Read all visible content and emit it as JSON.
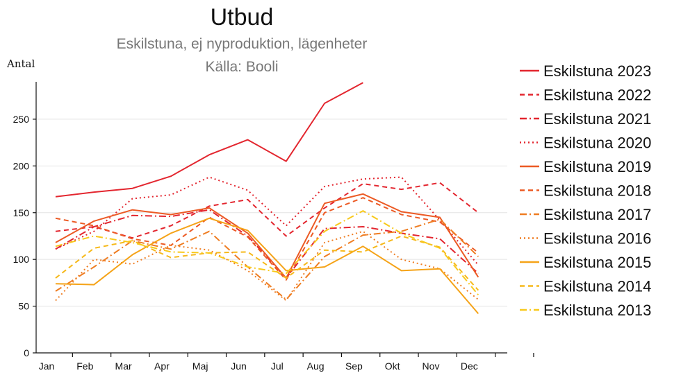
{
  "chart_data": {
    "type": "line",
    "title": "Utbud",
    "subtitle": "Eskilstuna, ej nyproduktion, lägenheter",
    "source": "Källa: Booli",
    "ylabel": "Antal",
    "xlabel": "",
    "ylim": [
      0,
      290
    ],
    "yticks": [
      0,
      50,
      100,
      150,
      200,
      250
    ],
    "categories": [
      "Jan",
      "Feb",
      "Mar",
      "Apr",
      "Maj",
      "Jun",
      "Jul",
      "Aug",
      "Sep",
      "Okt",
      "Nov",
      "Dec"
    ],
    "grid": true,
    "legend_position": "right",
    "series": [
      {
        "name": "Eskilstuna 2023",
        "color": "#e3262f",
        "dash": "solid",
        "values": [
          167,
          172,
          176,
          189,
          212,
          228,
          205,
          267,
          289,
          null,
          null,
          null
        ]
      },
      {
        "name": "Eskilstuna 2022",
        "color": "#e3262f",
        "dash": "dash",
        "values": [
          130,
          135,
          123,
          136,
          157,
          164,
          125,
          155,
          181,
          175,
          182,
          150
        ]
      },
      {
        "name": "Eskilstuna 2021",
        "color": "#e3262f",
        "dash": "dashdot",
        "values": [
          111,
          135,
          147,
          146,
          153,
          125,
          80,
          133,
          135,
          128,
          122,
          85
        ]
      },
      {
        "name": "Eskilstuna 2020",
        "color": "#e3262f",
        "dash": "dot",
        "values": [
          111,
          130,
          165,
          169,
          188,
          174,
          136,
          178,
          186,
          188,
          142,
          94
        ]
      },
      {
        "name": "Eskilstuna 2019",
        "color": "#ec5a24",
        "dash": "solid",
        "values": [
          118,
          141,
          153,
          148,
          155,
          128,
          80,
          160,
          170,
          151,
          145,
          81
        ]
      },
      {
        "name": "Eskilstuna 2018",
        "color": "#ec5a24",
        "dash": "dash",
        "values": [
          144,
          136,
          122,
          115,
          145,
          124,
          78,
          150,
          166,
          148,
          140,
          107
        ]
      },
      {
        "name": "Eskilstuna 2017",
        "color": "#ef7d22",
        "dash": "dashdot",
        "values": [
          66,
          92,
          120,
          111,
          130,
          92,
          57,
          103,
          126,
          130,
          143,
          103
        ]
      },
      {
        "name": "Eskilstuna 2016",
        "color": "#ef7d22",
        "dash": "dot",
        "values": [
          56,
          100,
          95,
          115,
          110,
          88,
          56,
          118,
          130,
          100,
          90,
          57
        ]
      },
      {
        "name": "Eskilstuna 2015",
        "color": "#f5a318",
        "dash": "solid",
        "values": [
          74,
          73,
          105,
          128,
          144,
          131,
          88,
          92,
          114,
          88,
          90,
          42
        ]
      },
      {
        "name": "Eskilstuna 2014",
        "color": "#f6b91a",
        "dash": "dash",
        "values": [
          80,
          112,
          120,
          102,
          107,
          108,
          80,
          110,
          108,
          125,
          113,
          67
        ]
      },
      {
        "name": "Eskilstuna 2013",
        "color": "#f8c91c",
        "dash": "dashdot",
        "values": [
          114,
          125,
          118,
          108,
          107,
          92,
          85,
          130,
          152,
          128,
          112,
          62
        ]
      }
    ]
  }
}
